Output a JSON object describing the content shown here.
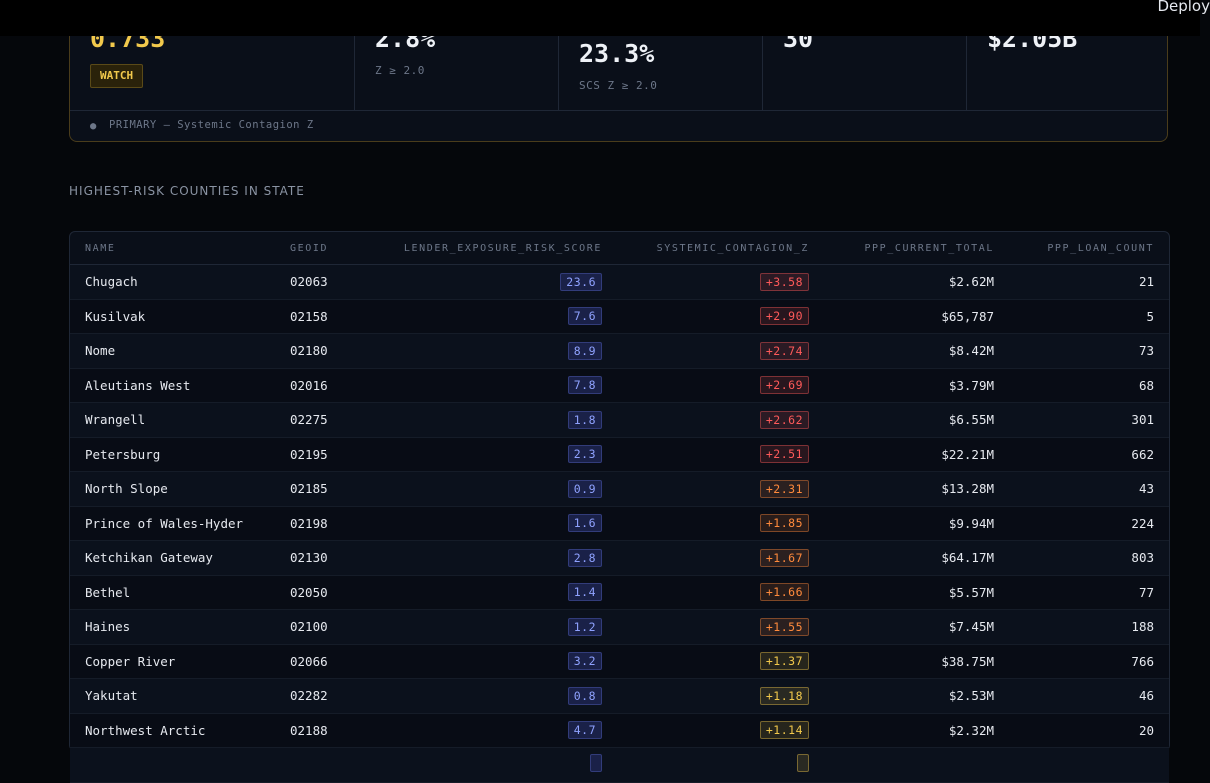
{
  "topbar": {
    "deploy_label": "Deploy"
  },
  "metrics": [
    {
      "value": "0.733",
      "highlight": true,
      "badge": "WATCH",
      "sub": ""
    },
    {
      "value": "2.8%",
      "sub": "Z ≥ 2.0"
    },
    {
      "value": "23.3%",
      "sub": "SCS Z ≥ 2.0"
    },
    {
      "value": "30",
      "sub": ""
    },
    {
      "value": "$2.05B",
      "sub": ""
    }
  ],
  "metrics_footer": {
    "dot": "●",
    "text": "PRIMARY — Systemic Contagion Z"
  },
  "section_title": "HIGHEST-RISK COUNTIES IN STATE",
  "table": {
    "columns": [
      "NAME",
      "GEOID",
      "LENDER_EXPOSURE_RISK_SCORE",
      "SYSTEMIC_CONTAGION_Z",
      "PPP_CURRENT_TOTAL",
      "PPP_LOAN_COUNT"
    ],
    "rows": [
      {
        "name": "Chugach",
        "geoid": "02063",
        "lers": "23.6",
        "scz": "+3.58",
        "scz_color": "#ff5a5a",
        "ppp": "$2.62M",
        "count": "21"
      },
      {
        "name": "Kusilvak",
        "geoid": "02158",
        "lers": "7.6",
        "scz": "+2.90",
        "scz_color": "#ff5a5a",
        "ppp": "$65,787",
        "count": "5"
      },
      {
        "name": "Nome",
        "geoid": "02180",
        "lers": "8.9",
        "scz": "+2.74",
        "scz_color": "#ff5a5a",
        "ppp": "$8.42M",
        "count": "73"
      },
      {
        "name": "Aleutians West",
        "geoid": "02016",
        "lers": "7.8",
        "scz": "+2.69",
        "scz_color": "#ff5a5a",
        "ppp": "$3.79M",
        "count": "68"
      },
      {
        "name": "Wrangell",
        "geoid": "02275",
        "lers": "1.8",
        "scz": "+2.62",
        "scz_color": "#ff5a5a",
        "ppp": "$6.55M",
        "count": "301"
      },
      {
        "name": "Petersburg",
        "geoid": "02195",
        "lers": "2.3",
        "scz": "+2.51",
        "scz_color": "#ff5a5a",
        "ppp": "$22.21M",
        "count": "662"
      },
      {
        "name": "North Slope",
        "geoid": "02185",
        "lers": "0.9",
        "scz": "+2.31",
        "scz_color": "#ff8a3c",
        "ppp": "$13.28M",
        "count": "43"
      },
      {
        "name": "Prince of Wales-Hyder",
        "geoid": "02198",
        "lers": "1.6",
        "scz": "+1.85",
        "scz_color": "#ff8a3c",
        "ppp": "$9.94M",
        "count": "224"
      },
      {
        "name": "Ketchikan Gateway",
        "geoid": "02130",
        "lers": "2.8",
        "scz": "+1.67",
        "scz_color": "#ff8a3c",
        "ppp": "$64.17M",
        "count": "803"
      },
      {
        "name": "Bethel",
        "geoid": "02050",
        "lers": "1.4",
        "scz": "+1.66",
        "scz_color": "#ff8a3c",
        "ppp": "$5.57M",
        "count": "77"
      },
      {
        "name": "Haines",
        "geoid": "02100",
        "lers": "1.2",
        "scz": "+1.55",
        "scz_color": "#ff8a3c",
        "ppp": "$7.45M",
        "count": "188"
      },
      {
        "name": "Copper River",
        "geoid": "02066",
        "lers": "3.2",
        "scz": "+1.37",
        "scz_color": "#f2c94c",
        "ppp": "$38.75M",
        "count": "766"
      },
      {
        "name": "Yakutat",
        "geoid": "02282",
        "lers": "0.8",
        "scz": "+1.18",
        "scz_color": "#f2c94c",
        "ppp": "$2.53M",
        "count": "46"
      },
      {
        "name": "Northwest Arctic",
        "geoid": "02188",
        "lers": "4.7",
        "scz": "+1.14",
        "scz_color": "#f2c94c",
        "ppp": "$2.32M",
        "count": "20"
      },
      {
        "name": "",
        "geoid": "",
        "lers": "",
        "scz": "",
        "scz_color": "#f2c94c",
        "ppp": "",
        "count": ""
      }
    ]
  }
}
